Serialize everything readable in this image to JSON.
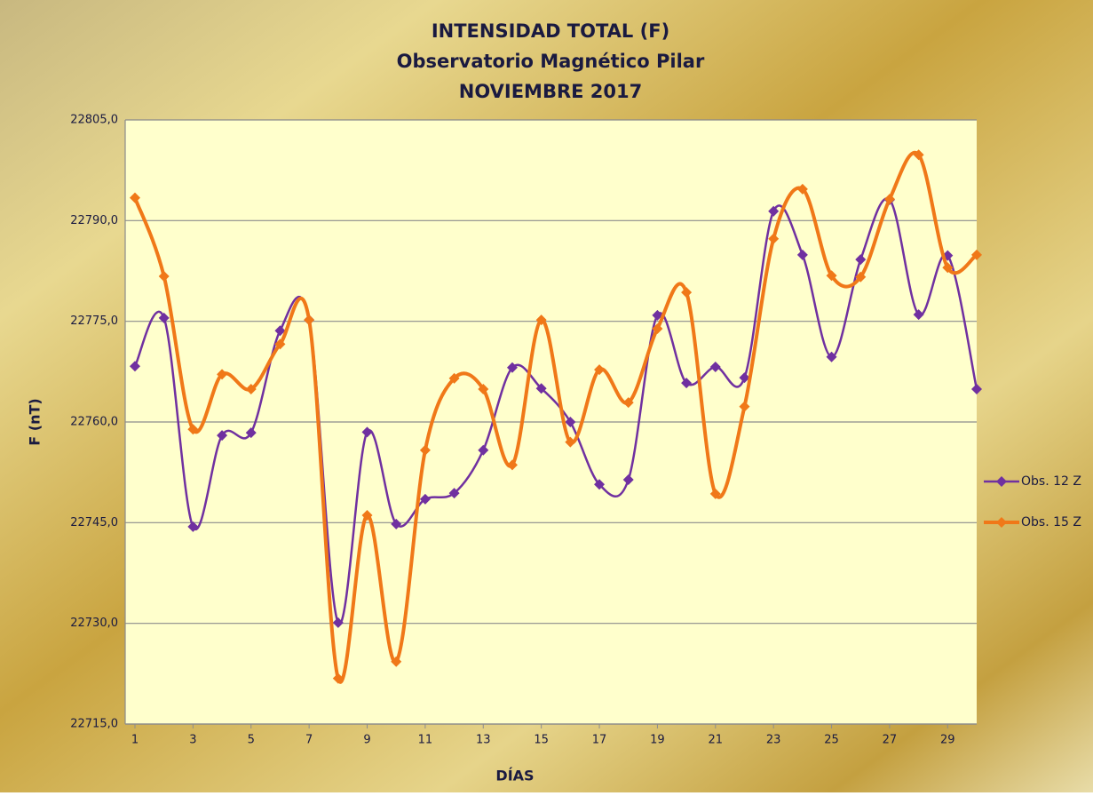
{
  "chart_data": {
    "type": "line",
    "title": [
      "INTENSIDAD TOTAL (F)",
      "Observatorio  Magnético Pilar",
      "NOVIEMBRE 2017"
    ],
    "x_label": "DÍAS",
    "y_label": "F (nT)",
    "x": [
      1,
      2,
      3,
      4,
      5,
      6,
      7,
      8,
      9,
      10,
      11,
      12,
      13,
      14,
      15,
      16,
      17,
      18,
      19,
      20,
      21,
      22,
      23,
      24,
      25,
      26,
      27,
      28,
      29,
      30
    ],
    "series": [
      {
        "name": "Obs. 12 Z",
        "color": "#7030a0",
        "values": [
          22768.3,
          22775.5,
          22744.4,
          22758.0,
          22758.4,
          22773.6,
          22775.2,
          22730.1,
          22758.5,
          22744.8,
          22748.5,
          22749.4,
          22755.8,
          22768.1,
          22765.0,
          22760.0,
          22750.7,
          22751.4,
          22775.9,
          22765.8,
          22768.2,
          22766.6,
          22791.4,
          22784.9,
          22769.7,
          22784.2,
          22793.1,
          22776.0,
          22784.8,
          22764.9
        ]
      },
      {
        "name": "Obs. 15 Z",
        "color": "#f07818",
        "values": [
          22793.4,
          22781.7,
          22758.9,
          22767.1,
          22764.9,
          22771.6,
          22775.2,
          22721.8,
          22746.1,
          22724.3,
          22755.8,
          22766.5,
          22764.9,
          22753.6,
          22775.2,
          22757.0,
          22767.8,
          22762.9,
          22773.9,
          22779.3,
          22749.3,
          22762.3,
          22787.3,
          22794.7,
          22781.8,
          22781.6,
          22793.2,
          22799.8,
          22783.0,
          22784.9
        ]
      }
    ],
    "xlim": [
      1,
      30
    ],
    "xticks": [
      1,
      3,
      5,
      7,
      9,
      11,
      13,
      15,
      17,
      19,
      21,
      23,
      25,
      27,
      29
    ],
    "ylim": [
      22715,
      22805
    ],
    "yticks": [
      {
        "value": 22715,
        "label": "22715,0"
      },
      {
        "value": 22730,
        "label": "22730,0"
      },
      {
        "value": 22745,
        "label": "22745,0"
      },
      {
        "value": 22760,
        "label": "22760,0"
      },
      {
        "value": 22775,
        "label": "22775,0"
      },
      {
        "value": 22790,
        "label": "22790,0"
      },
      {
        "value": 22805,
        "label": "22805,0"
      }
    ],
    "grid": true,
    "smooth": true,
    "legend": "right"
  }
}
